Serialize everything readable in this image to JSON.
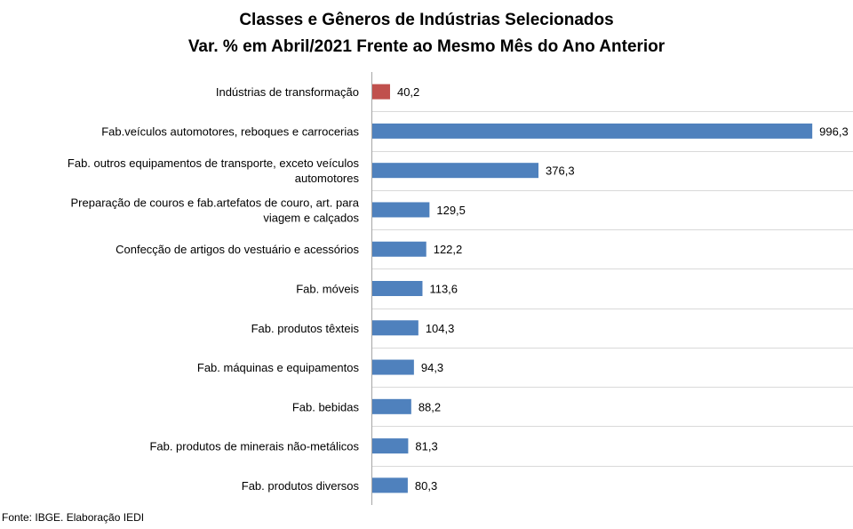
{
  "chart_data": {
    "type": "bar",
    "orientation": "horizontal",
    "title": "Classes e Gêneros de Indústrias Selecionados",
    "subtitle": "Var. % em Abril/2021 Frente ao Mesmo Mês do Ano Anterior",
    "categories": [
      "Indústrias de transformação",
      "Fab.veículos automotores, reboques e carrocerias",
      "Fab. outros equipamentos de transporte, exceto veículos automotores",
      "Preparação de couros e fab.artefatos de couro, art. para viagem e calçados",
      "Confecção de artigos do vestuário e acessórios",
      "Fab. móveis",
      "Fab. produtos têxteis",
      "Fab. máquinas e equipamentos",
      "Fab. bebidas",
      "Fab. produtos de minerais não-metálicos",
      "Fab. produtos diversos"
    ],
    "category_lines": [
      [
        "Indústrias de transformação"
      ],
      [
        "Fab.veículos automotores, reboques e carrocerias"
      ],
      [
        "Fab. outros equipamentos de transporte, exceto veículos",
        "automotores"
      ],
      [
        "Preparação de couros e fab.artefatos de couro, art. para",
        "viagem e calçados"
      ],
      [
        "Confecção de artigos do vestuário e acessórios"
      ],
      [
        "Fab. móveis"
      ],
      [
        "Fab. produtos têxteis"
      ],
      [
        "Fab. máquinas e equipamentos"
      ],
      [
        "Fab. bebidas"
      ],
      [
        "Fab. produtos de minerais não-metálicos"
      ],
      [
        "Fab. produtos diversos"
      ]
    ],
    "values": [
      40.2,
      996.3,
      376.3,
      129.5,
      122.2,
      113.6,
      104.3,
      94.3,
      88.2,
      81.3,
      80.3
    ],
    "value_labels": [
      "40,2",
      "996,3",
      "376,3",
      "129,5",
      "122,2",
      "113,6",
      "104,3",
      "94,3",
      "88,2",
      "81,3",
      "80,3"
    ],
    "xlim": [
      0,
      1000
    ],
    "grid": true,
    "legend": "none",
    "highlight_index": 0,
    "colors": {
      "highlight": "#C0504D",
      "bar": "#4F81BD",
      "grid": "#D9D9D9",
      "axis": "#A6A6A6"
    }
  },
  "source": "Fonte: IBGE. Elaboração IEDI"
}
